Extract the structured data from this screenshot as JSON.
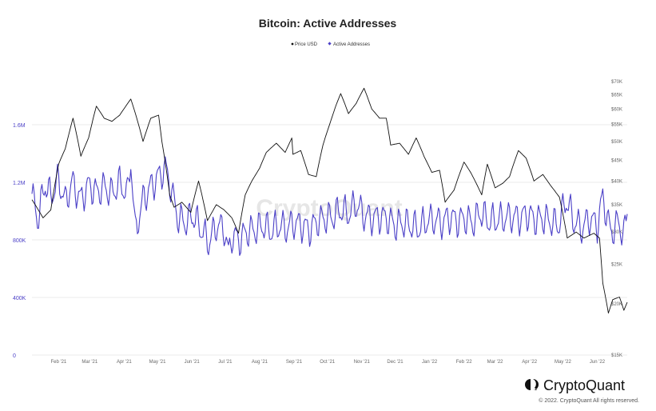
{
  "chart_data": {
    "type": "line",
    "title": "Bitcoin: Active Addresses",
    "legend": [
      {
        "name": "Price USD",
        "color": "#111111",
        "marker": "dot"
      },
      {
        "name": "Active Addresses",
        "color": "#4a3fc7",
        "marker": "diamond"
      }
    ],
    "legend_placement": "top-center",
    "x_tick_labels": [
      "Feb '21",
      "Mar '21",
      "Apr '21",
      "May '21",
      "Jun '21",
      "Jul '21",
      "Aug '21",
      "Sep '21",
      "Oct '21",
      "Nov '21",
      "Dec '21",
      "Jan '22",
      "Feb '22",
      "Mar '22",
      "Apr '22",
      "May '22",
      "Jun '22"
    ],
    "left_axis": {
      "ticks": [
        {
          "value": 0,
          "label": "0"
        },
        {
          "value": 400000,
          "label": "400K"
        },
        {
          "value": 800000,
          "label": "800K"
        },
        {
          "value": 1200000,
          "label": "1.2M"
        },
        {
          "value": 1600000,
          "label": "1.6M"
        }
      ],
      "range": [
        0,
        2000000
      ],
      "color": "#4a3fc7"
    },
    "right_axis": {
      "scale": "log",
      "ticks": [
        {
          "value": 15000,
          "label": "$15K"
        },
        {
          "value": 20000,
          "label": "$20K"
        },
        {
          "value": 25000,
          "label": "$25K"
        },
        {
          "value": 30000,
          "label": "$30K"
        },
        {
          "value": 35000,
          "label": "$35K"
        },
        {
          "value": 40000,
          "label": "$40K"
        },
        {
          "value": 45000,
          "label": "$45K"
        },
        {
          "value": 50000,
          "label": "$50K"
        },
        {
          "value": 55000,
          "label": "$55K"
        },
        {
          "value": 60000,
          "label": "$60K"
        },
        {
          "value": 65000,
          "label": "$65K"
        },
        {
          "value": 70000,
          "label": "$70K"
        }
      ]
    },
    "grid": true,
    "series": [
      {
        "name": "Price USD",
        "axis": "right",
        "points": [
          [
            "2021-01-15",
            36000
          ],
          [
            "2021-01-25",
            32500
          ],
          [
            "2021-02-01",
            34000
          ],
          [
            "2021-02-08",
            44000
          ],
          [
            "2021-02-14",
            48000
          ],
          [
            "2021-02-21",
            57000
          ],
          [
            "2021-02-28",
            46000
          ],
          [
            "2021-03-07",
            51000
          ],
          [
            "2021-03-14",
            61000
          ],
          [
            "2021-03-21",
            57000
          ],
          [
            "2021-03-28",
            56000
          ],
          [
            "2021-04-04",
            58000
          ],
          [
            "2021-04-14",
            63500
          ],
          [
            "2021-04-21",
            55000
          ],
          [
            "2021-04-25",
            50000
          ],
          [
            "2021-05-02",
            57000
          ],
          [
            "2021-05-09",
            58000
          ],
          [
            "2021-05-12",
            50000
          ],
          [
            "2021-05-19",
            37000
          ],
          [
            "2021-05-23",
            34500
          ],
          [
            "2021-05-30",
            35500
          ],
          [
            "2021-06-07",
            33500
          ],
          [
            "2021-06-14",
            40000
          ],
          [
            "2021-06-22",
            32000
          ],
          [
            "2021-06-30",
            35000
          ],
          [
            "2021-07-07",
            34000
          ],
          [
            "2021-07-14",
            32500
          ],
          [
            "2021-07-20",
            29800
          ],
          [
            "2021-07-26",
            37000
          ],
          [
            "2021-08-01",
            40000
          ],
          [
            "2021-08-08",
            43000
          ],
          [
            "2021-08-14",
            47000
          ],
          [
            "2021-08-23",
            49500
          ],
          [
            "2021-08-31",
            47000
          ],
          [
            "2021-09-06",
            51000
          ],
          [
            "2021-09-07",
            46500
          ],
          [
            "2021-09-14",
            47500
          ],
          [
            "2021-09-21",
            41500
          ],
          [
            "2021-09-28",
            41000
          ],
          [
            "2021-10-04",
            49000
          ],
          [
            "2021-10-10",
            55000
          ],
          [
            "2021-10-16",
            61500
          ],
          [
            "2021-10-20",
            65500
          ],
          [
            "2021-10-27",
            58500
          ],
          [
            "2021-11-03",
            62000
          ],
          [
            "2021-11-10",
            67500
          ],
          [
            "2021-11-17",
            60000
          ],
          [
            "2021-11-24",
            57000
          ],
          [
            "2021-11-30",
            57000
          ],
          [
            "2021-12-04",
            49000
          ],
          [
            "2021-12-12",
            49500
          ],
          [
            "2021-12-20",
            46500
          ],
          [
            "2021-12-27",
            51000
          ],
          [
            "2022-01-03",
            46000
          ],
          [
            "2022-01-10",
            42000
          ],
          [
            "2022-01-17",
            42500
          ],
          [
            "2022-01-22",
            35500
          ],
          [
            "2022-01-30",
            38000
          ],
          [
            "2022-02-08",
            44500
          ],
          [
            "2022-02-14",
            42000
          ],
          [
            "2022-02-24",
            37000
          ],
          [
            "2022-03-01",
            44000
          ],
          [
            "2022-03-08",
            38500
          ],
          [
            "2022-03-15",
            39500
          ],
          [
            "2022-03-21",
            41000
          ],
          [
            "2022-03-29",
            47500
          ],
          [
            "2022-04-05",
            45500
          ],
          [
            "2022-04-12",
            40000
          ],
          [
            "2022-04-20",
            41500
          ],
          [
            "2022-04-27",
            39000
          ],
          [
            "2022-05-05",
            36500
          ],
          [
            "2022-05-12",
            29000
          ],
          [
            "2022-05-20",
            30000
          ],
          [
            "2022-05-27",
            29000
          ],
          [
            "2022-06-05",
            29800
          ],
          [
            "2022-06-10",
            29000
          ],
          [
            "2022-06-13",
            22500
          ],
          [
            "2022-06-18",
            19000
          ],
          [
            "2022-06-22",
            20500
          ],
          [
            "2022-06-28",
            20800
          ],
          [
            "2022-07-02",
            19300
          ],
          [
            "2022-07-05",
            20200
          ]
        ]
      },
      {
        "name": "Active Addresses",
        "axis": "left",
        "points": [
          [
            "2021-01-15",
            1120000
          ],
          [
            "2021-01-20",
            940000
          ],
          [
            "2021-01-27",
            1190000
          ],
          [
            "2021-02-01",
            1100000
          ],
          [
            "2021-02-08",
            1220000
          ],
          [
            "2021-02-14",
            1060000
          ],
          [
            "2021-02-20",
            1200000
          ],
          [
            "2021-02-28",
            1080000
          ],
          [
            "2021-03-07",
            1180000
          ],
          [
            "2021-03-14",
            1130000
          ],
          [
            "2021-03-21",
            1170000
          ],
          [
            "2021-03-28",
            1120000
          ],
          [
            "2021-04-04",
            1200000
          ],
          [
            "2021-04-11",
            1110000
          ],
          [
            "2021-04-14",
            1360000
          ],
          [
            "2021-04-18",
            850000
          ],
          [
            "2021-04-25",
            1080000
          ],
          [
            "2021-05-02",
            1170000
          ],
          [
            "2021-05-09",
            1240000
          ],
          [
            "2021-05-15",
            1300000
          ],
          [
            "2021-05-19",
            1200000
          ],
          [
            "2021-05-26",
            960000
          ],
          [
            "2021-06-02",
            920000
          ],
          [
            "2021-06-09",
            970000
          ],
          [
            "2021-06-16",
            880000
          ],
          [
            "2021-06-23",
            780000
          ],
          [
            "2021-06-30",
            900000
          ],
          [
            "2021-07-07",
            880000
          ],
          [
            "2021-07-11",
            700000
          ],
          [
            "2021-07-14",
            830000
          ],
          [
            "2021-07-21",
            800000
          ],
          [
            "2021-07-28",
            860000
          ],
          [
            "2021-08-04",
            870000
          ],
          [
            "2021-08-11",
            900000
          ],
          [
            "2021-08-18",
            860000
          ],
          [
            "2021-08-25",
            900000
          ],
          [
            "2021-09-01",
            880000
          ],
          [
            "2021-09-08",
            920000
          ],
          [
            "2021-09-15",
            900000
          ],
          [
            "2021-09-22",
            870000
          ],
          [
            "2021-09-29",
            930000
          ],
          [
            "2021-10-06",
            950000
          ],
          [
            "2021-10-13",
            960000
          ],
          [
            "2021-10-20",
            1010000
          ],
          [
            "2021-10-27",
            980000
          ],
          [
            "2021-11-03",
            1050000
          ],
          [
            "2021-11-10",
            970000
          ],
          [
            "2021-11-17",
            950000
          ],
          [
            "2021-11-24",
            960000
          ],
          [
            "2021-12-01",
            950000
          ],
          [
            "2021-12-08",
            900000
          ],
          [
            "2021-12-15",
            920000
          ],
          [
            "2021-12-22",
            900000
          ],
          [
            "2021-12-29",
            880000
          ],
          [
            "2022-01-05",
            930000
          ],
          [
            "2022-01-12",
            940000
          ],
          [
            "2022-01-19",
            920000
          ],
          [
            "2022-01-26",
            960000
          ],
          [
            "2022-02-02",
            930000
          ],
          [
            "2022-02-09",
            950000
          ],
          [
            "2022-02-16",
            920000
          ],
          [
            "2022-02-23",
            990000
          ],
          [
            "2022-03-02",
            930000
          ],
          [
            "2022-03-09",
            940000
          ],
          [
            "2022-03-16",
            950000
          ],
          [
            "2022-03-23",
            960000
          ],
          [
            "2022-03-30",
            950000
          ],
          [
            "2022-04-06",
            980000
          ],
          [
            "2022-04-13",
            940000
          ],
          [
            "2022-04-20",
            950000
          ],
          [
            "2022-04-27",
            930000
          ],
          [
            "2022-05-04",
            900000
          ],
          [
            "2022-05-11",
            1080000
          ],
          [
            "2022-05-18",
            930000
          ],
          [
            "2022-05-25",
            880000
          ],
          [
            "2022-06-01",
            950000
          ],
          [
            "2022-06-08",
            900000
          ],
          [
            "2022-06-13",
            1100000
          ],
          [
            "2022-06-20",
            850000
          ],
          [
            "2022-06-27",
            920000
          ],
          [
            "2022-07-02",
            830000
          ],
          [
            "2022-07-05",
            980000
          ]
        ]
      }
    ]
  },
  "watermark": "CryptoQuant",
  "brand": {
    "name": "CryptoQuant",
    "copyright": "© 2022. CryptoQuant All rights reserved."
  }
}
